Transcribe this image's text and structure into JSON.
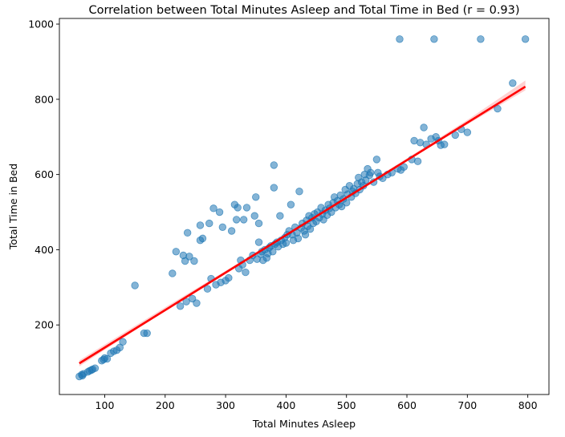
{
  "chart_data": {
    "type": "scatter",
    "title": "Correlation between Total Minutes Asleep and Total Time in Bed (r = 0.93)",
    "xlabel": "Total Minutes Asleep",
    "ylabel": "Total Time in Bed",
    "xlim": [
      25,
      835
    ],
    "ylim": [
      15,
      1015
    ],
    "xticks": [
      100,
      200,
      300,
      400,
      500,
      600,
      700,
      800
    ],
    "yticks": [
      200,
      400,
      600,
      800,
      1000
    ],
    "grid": false,
    "legend": "none",
    "point_color": "#1f77b4",
    "point_alpha": 0.55,
    "regression": {
      "color": "#ff0000",
      "ci_color": "#ff9999",
      "x_range": [
        58,
        796
      ],
      "slope": 0.997,
      "intercept": 40,
      "ci_low": [
        [
          58,
          90
        ],
        [
          200,
          237
        ],
        [
          300,
          338
        ],
        [
          400,
          438
        ],
        [
          500,
          537
        ],
        [
          600,
          635
        ],
        [
          700,
          733
        ],
        [
          796,
          824
        ]
      ],
      "ci_high": [
        [
          58,
          106
        ],
        [
          200,
          247
        ],
        [
          300,
          344
        ],
        [
          400,
          443
        ],
        [
          500,
          543
        ],
        [
          600,
          643
        ],
        [
          700,
          745
        ],
        [
          796,
          850
        ]
      ]
    },
    "points": [
      [
        58,
        63
      ],
      [
        62,
        68
      ],
      [
        63,
        65
      ],
      [
        65,
        70
      ],
      [
        72,
        75
      ],
      [
        75,
        78
      ],
      [
        78,
        80
      ],
      [
        80,
        82
      ],
      [
        84,
        85
      ],
      [
        95,
        105
      ],
      [
        98,
        108
      ],
      [
        100,
        112
      ],
      [
        104,
        110
      ],
      [
        110,
        125
      ],
      [
        115,
        130
      ],
      [
        120,
        133
      ],
      [
        125,
        140
      ],
      [
        130,
        155
      ],
      [
        150,
        305
      ],
      [
        165,
        178
      ],
      [
        170,
        178
      ],
      [
        212,
        337
      ],
      [
        218,
        395
      ],
      [
        225,
        250
      ],
      [
        230,
        385
      ],
      [
        233,
        370
      ],
      [
        235,
        262
      ],
      [
        237,
        445
      ],
      [
        240,
        382
      ],
      [
        245,
        270
      ],
      [
        248,
        370
      ],
      [
        252,
        258
      ],
      [
        258,
        465
      ],
      [
        258,
        425
      ],
      [
        262,
        430
      ],
      [
        270,
        296
      ],
      [
        273,
        470
      ],
      [
        276,
        323
      ],
      [
        280,
        510
      ],
      [
        284,
        307
      ],
      [
        290,
        500
      ],
      [
        292,
        313
      ],
      [
        295,
        460
      ],
      [
        300,
        318
      ],
      [
        305,
        325
      ],
      [
        310,
        450
      ],
      [
        315,
        520
      ],
      [
        318,
        480
      ],
      [
        320,
        512
      ],
      [
        322,
        350
      ],
      [
        325,
        372
      ],
      [
        328,
        360
      ],
      [
        330,
        480
      ],
      [
        333,
        340
      ],
      [
        335,
        512
      ],
      [
        340,
        372
      ],
      [
        345,
        385
      ],
      [
        348,
        490
      ],
      [
        350,
        540
      ],
      [
        352,
        375
      ],
      [
        355,
        420
      ],
      [
        355,
        470
      ],
      [
        358,
        388
      ],
      [
        360,
        395
      ],
      [
        362,
        372
      ],
      [
        365,
        400
      ],
      [
        368,
        378
      ],
      [
        370,
        390
      ],
      [
        372,
        405
      ],
      [
        375,
        410
      ],
      [
        378,
        395
      ],
      [
        380,
        625
      ],
      [
        380,
        565
      ],
      [
        382,
        415
      ],
      [
        385,
        420
      ],
      [
        387,
        408
      ],
      [
        390,
        490
      ],
      [
        392,
        425
      ],
      [
        395,
        415
      ],
      [
        398,
        432
      ],
      [
        400,
        418
      ],
      [
        402,
        440
      ],
      [
        405,
        450
      ],
      [
        408,
        520
      ],
      [
        410,
        440
      ],
      [
        412,
        425
      ],
      [
        415,
        460
      ],
      [
        418,
        445
      ],
      [
        420,
        430
      ],
      [
        422,
        555
      ],
      [
        425,
        458
      ],
      [
        427,
        470
      ],
      [
        430,
        450
      ],
      [
        432,
        440
      ],
      [
        434,
        478
      ],
      [
        436,
        462
      ],
      [
        438,
        490
      ],
      [
        440,
        455
      ],
      [
        443,
        485
      ],
      [
        445,
        470
      ],
      [
        447,
        495
      ],
      [
        450,
        475
      ],
      [
        452,
        500
      ],
      [
        455,
        485
      ],
      [
        458,
        512
      ],
      [
        460,
        495
      ],
      [
        462,
        480
      ],
      [
        465,
        505
      ],
      [
        468,
        492
      ],
      [
        470,
        520
      ],
      [
        472,
        510
      ],
      [
        475,
        500
      ],
      [
        478,
        525
      ],
      [
        480,
        540
      ],
      [
        482,
        512
      ],
      [
        485,
        530
      ],
      [
        488,
        520
      ],
      [
        490,
        545
      ],
      [
        492,
        515
      ],
      [
        495,
        535
      ],
      [
        498,
        560
      ],
      [
        500,
        525
      ],
      [
        502,
        548
      ],
      [
        505,
        570
      ],
      [
        508,
        540
      ],
      [
        510,
        555
      ],
      [
        512,
        562
      ],
      [
        515,
        550
      ],
      [
        518,
        575
      ],
      [
        520,
        592
      ],
      [
        522,
        560
      ],
      [
        525,
        580
      ],
      [
        528,
        570
      ],
      [
        530,
        600
      ],
      [
        532,
        585
      ],
      [
        535,
        615
      ],
      [
        538,
        598
      ],
      [
        540,
        605
      ],
      [
        545,
        580
      ],
      [
        550,
        640
      ],
      [
        552,
        605
      ],
      [
        555,
        595
      ],
      [
        560,
        590
      ],
      [
        568,
        600
      ],
      [
        575,
        605
      ],
      [
        585,
        615
      ],
      [
        590,
        612
      ],
      [
        595,
        620
      ],
      [
        608,
        640
      ],
      [
        612,
        690
      ],
      [
        618,
        635
      ],
      [
        622,
        685
      ],
      [
        628,
        725
      ],
      [
        632,
        680
      ],
      [
        640,
        695
      ],
      [
        648,
        700
      ],
      [
        652,
        690
      ],
      [
        656,
        678
      ],
      [
        662,
        680
      ],
      [
        680,
        705
      ],
      [
        690,
        720
      ],
      [
        700,
        712
      ],
      [
        750,
        775
      ],
      [
        775,
        843
      ],
      [
        588,
        960
      ],
      [
        645,
        960
      ],
      [
        722,
        960
      ],
      [
        796,
        960
      ]
    ]
  }
}
